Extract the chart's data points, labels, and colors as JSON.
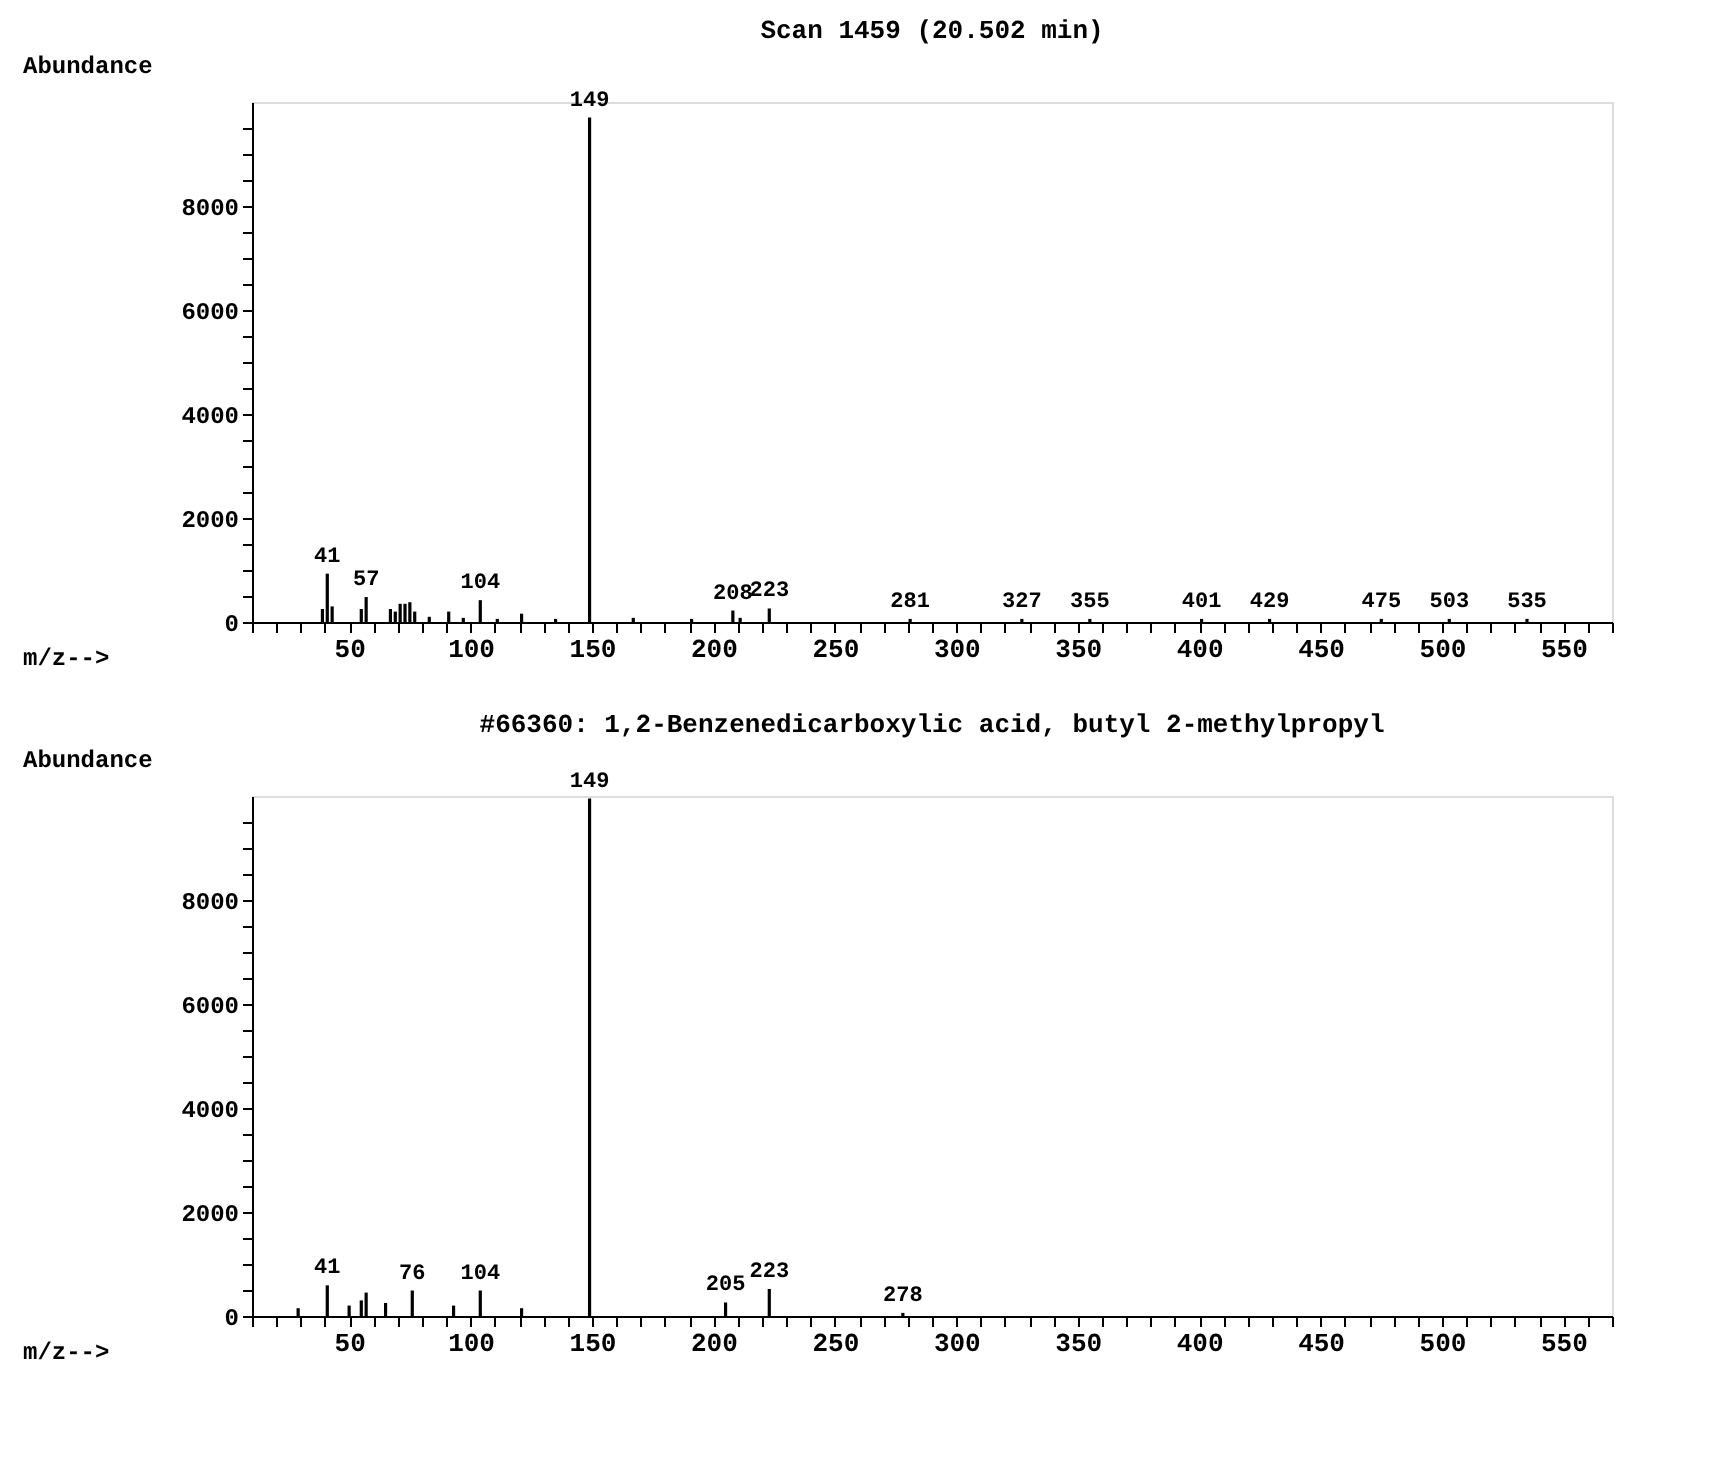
{
  "chart_data": [
    {
      "type": "bar",
      "title": "Scan 1459 (20.502 min)",
      "xlabel": "m/z-->",
      "ylabel": "Abundance",
      "color": "#000000",
      "x": [
        39,
        41,
        43,
        55,
        57,
        67,
        69,
        71,
        73,
        75,
        77,
        83,
        91,
        97,
        104,
        111,
        121,
        135,
        149,
        167,
        191,
        208,
        211,
        223,
        281,
        327,
        355,
        401,
        429,
        475,
        503,
        535
      ],
      "values": [
        250,
        930,
        300,
        250,
        480,
        250,
        200,
        350,
        350,
        380,
        200,
        100,
        200,
        80,
        420,
        60,
        160,
        60,
        9700,
        80,
        60,
        220,
        80,
        260,
        60,
        60,
        60,
        60,
        60,
        60,
        60,
        60
      ],
      "annotations": [
        {
          "text": "41",
          "x": 41,
          "y": 930
        },
        {
          "text": "57",
          "x": 57,
          "y": 480
        },
        {
          "text": "104",
          "x": 104,
          "y": 420
        },
        {
          "text": "149",
          "x": 149,
          "y": 9700
        },
        {
          "text": "208",
          "x": 208,
          "y": 220
        },
        {
          "text": "223",
          "x": 223,
          "y": 260
        },
        {
          "text": "281",
          "x": 281,
          "y": 60
        },
        {
          "text": "327",
          "x": 327,
          "y": 60
        },
        {
          "text": "355",
          "x": 355,
          "y": 60
        },
        {
          "text": "401",
          "x": 401,
          "y": 60
        },
        {
          "text": "429",
          "x": 429,
          "y": 60
        },
        {
          "text": "475",
          "x": 475,
          "y": 60
        },
        {
          "text": "503",
          "x": 503,
          "y": 60
        },
        {
          "text": "535",
          "x": 535,
          "y": 60
        }
      ],
      "xlim": [
        10,
        570
      ],
      "ylim": [
        0,
        10000
      ],
      "xticks": [
        {
          "value": 10,
          "label": null
        },
        {
          "value": 20,
          "label": null
        },
        {
          "value": 30,
          "label": null
        },
        {
          "value": 40,
          "label": null
        },
        50,
        {
          "value": 60,
          "label": null
        },
        {
          "value": 70,
          "label": null
        },
        {
          "value": 80,
          "label": null
        },
        {
          "value": 90,
          "label": null
        },
        100,
        {
          "value": 110,
          "label": null
        },
        {
          "value": 120,
          "label": null
        },
        {
          "value": 130,
          "label": null
        },
        {
          "value": 140,
          "label": null
        },
        150,
        {
          "value": 160,
          "label": null
        },
        {
          "value": 170,
          "label": null
        },
        {
          "value": 180,
          "label": null
        },
        {
          "value": 190,
          "label": null
        },
        200,
        {
          "value": 210,
          "label": null
        },
        {
          "value": 220,
          "label": null
        },
        {
          "value": 230,
          "label": null
        },
        {
          "value": 240,
          "label": null
        },
        250,
        {
          "value": 260,
          "label": null
        },
        {
          "value": 270,
          "label": null
        },
        {
          "value": 280,
          "label": null
        },
        {
          "value": 290,
          "label": null
        },
        300,
        {
          "value": 310,
          "label": null
        },
        {
          "value": 320,
          "label": null
        },
        {
          "value": 330,
          "label": null
        },
        {
          "value": 340,
          "label": null
        },
        350,
        {
          "value": 360,
          "label": null
        },
        {
          "value": 370,
          "label": null
        },
        {
          "value": 380,
          "label": null
        },
        {
          "value": 390,
          "label": null
        },
        400,
        {
          "value": 410,
          "label": null
        },
        {
          "value": 420,
          "label": null
        },
        {
          "value": 430,
          "label": null
        },
        {
          "value": 440,
          "label": null
        },
        450,
        {
          "value": 460,
          "label": null
        },
        {
          "value": 470,
          "label": null
        },
        {
          "value": 480,
          "label": null
        },
        {
          "value": 490,
          "label": null
        },
        500,
        {
          "value": 510,
          "label": null
        },
        {
          "value": 520,
          "label": null
        },
        {
          "value": 530,
          "label": null
        },
        {
          "value": 540,
          "label": null
        },
        550,
        {
          "value": 560,
          "label": null
        },
        {
          "value": 570,
          "label": null
        }
      ],
      "yticks": [
        0,
        {
          "value": 500,
          "label": null
        },
        {
          "value": 1000,
          "label": null
        },
        {
          "value": 1500,
          "label": null
        },
        2000,
        {
          "value": 2500,
          "label": null
        },
        {
          "value": 3000,
          "label": null
        },
        {
          "value": 3500,
          "label": null
        },
        4000,
        {
          "value": 4500,
          "label": null
        },
        {
          "value": 5000,
          "label": null
        },
        {
          "value": 5500,
          "label": null
        },
        6000,
        {
          "value": 6500,
          "label": null
        },
        {
          "value": 7000,
          "label": null
        },
        {
          "value": 7500,
          "label": null
        },
        8000,
        {
          "value": 8500,
          "label": null
        },
        {
          "value": 9000,
          "label": null
        },
        {
          "value": 9500,
          "label": null
        }
      ]
    },
    {
      "type": "bar",
      "title": "#66360: 1,2-Benzenedicarboxylic acid, butyl 2-methylpropyl",
      "xlabel": "m/z-->",
      "ylabel": "Abundance",
      "color": "#000000",
      "x": [
        29,
        41,
        50,
        55,
        57,
        65,
        76,
        93,
        104,
        121,
        149,
        205,
        223,
        278
      ],
      "values": [
        150,
        590,
        200,
        300,
        450,
        250,
        490,
        200,
        490,
        150,
        9950,
        260,
        520,
        60
      ],
      "annotations": [
        {
          "text": "41",
          "x": 41,
          "y": 590
        },
        {
          "text": "76",
          "x": 76,
          "y": 490
        },
        {
          "text": "104",
          "x": 104,
          "y": 490
        },
        {
          "text": "149",
          "x": 149,
          "y": 9950
        },
        {
          "text": "205",
          "x": 205,
          "y": 260
        },
        {
          "text": "223",
          "x": 223,
          "y": 520
        },
        {
          "text": "278",
          "x": 278,
          "y": 60
        }
      ],
      "xlim": [
        10,
        570
      ],
      "ylim": [
        0,
        10000
      ],
      "xticks": [
        {
          "value": 10,
          "label": null
        },
        {
          "value": 20,
          "label": null
        },
        {
          "value": 30,
          "label": null
        },
        {
          "value": 40,
          "label": null
        },
        50,
        {
          "value": 60,
          "label": null
        },
        {
          "value": 70,
          "label": null
        },
        {
          "value": 80,
          "label": null
        },
        {
          "value": 90,
          "label": null
        },
        100,
        {
          "value": 110,
          "label": null
        },
        {
          "value": 120,
          "label": null
        },
        {
          "value": 130,
          "label": null
        },
        {
          "value": 140,
          "label": null
        },
        150,
        {
          "value": 160,
          "label": null
        },
        {
          "value": 170,
          "label": null
        },
        {
          "value": 180,
          "label": null
        },
        {
          "value": 190,
          "label": null
        },
        200,
        {
          "value": 210,
          "label": null
        },
        {
          "value": 220,
          "label": null
        },
        {
          "value": 230,
          "label": null
        },
        {
          "value": 240,
          "label": null
        },
        250,
        {
          "value": 260,
          "label": null
        },
        {
          "value": 270,
          "label": null
        },
        {
          "value": 280,
          "label": null
        },
        {
          "value": 290,
          "label": null
        },
        300,
        {
          "value": 310,
          "label": null
        },
        {
          "value": 320,
          "label": null
        },
        {
          "value": 330,
          "label": null
        },
        {
          "value": 340,
          "label": null
        },
        350,
        {
          "value": 360,
          "label": null
        },
        {
          "value": 370,
          "label": null
        },
        {
          "value": 380,
          "label": null
        },
        {
          "value": 390,
          "label": null
        },
        400,
        {
          "value": 410,
          "label": null
        },
        {
          "value": 420,
          "label": null
        },
        {
          "value": 430,
          "label": null
        },
        {
          "value": 440,
          "label": null
        },
        450,
        {
          "value": 460,
          "label": null
        },
        {
          "value": 470,
          "label": null
        },
        {
          "value": 480,
          "label": null
        },
        {
          "value": 490,
          "label": null
        },
        500,
        {
          "value": 510,
          "label": null
        },
        {
          "value": 520,
          "label": null
        },
        {
          "value": 530,
          "label": null
        },
        {
          "value": 540,
          "label": null
        },
        550,
        {
          "value": 560,
          "label": null
        },
        {
          "value": 570,
          "label": null
        }
      ],
      "yticks": [
        0,
        {
          "value": 500,
          "label": null
        },
        {
          "value": 1000,
          "label": null
        },
        {
          "value": 1500,
          "label": null
        },
        2000,
        {
          "value": 2500,
          "label": null
        },
        {
          "value": 3000,
          "label": null
        },
        {
          "value": 3500,
          "label": null
        },
        4000,
        {
          "value": 4500,
          "label": null
        },
        {
          "value": 5000,
          "label": null
        },
        {
          "value": 5500,
          "label": null
        },
        6000,
        {
          "value": 6500,
          "label": null
        },
        {
          "value": 7000,
          "label": null
        },
        {
          "value": 7500,
          "label": null
        },
        8000,
        {
          "value": 8500,
          "label": null
        },
        {
          "value": 9000,
          "label": null
        },
        {
          "value": 9500,
          "label": null
        }
      ]
    }
  ]
}
